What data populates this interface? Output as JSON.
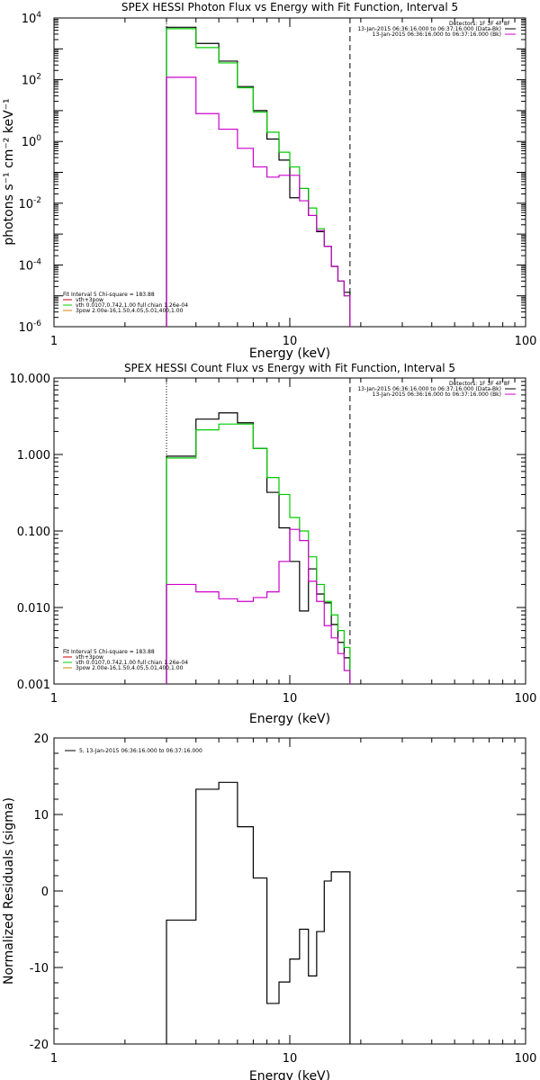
{
  "colors": {
    "black": "#000000",
    "green": "#00cc00",
    "magenta": "#cc00cc",
    "red": "#cc0000",
    "orange": "#cc8800"
  },
  "chart_data": [
    {
      "type": "line",
      "title": "SPEX HESSI Photon Flux vs Energy with Fit Function, Interval 5",
      "xlabel": "Energy (keV)",
      "ylabel": "photons s⁻¹ cm⁻² keV⁻¹",
      "xscale": "log",
      "yscale": "log",
      "xlim": [
        1,
        100
      ],
      "ylim": [
        1e-06,
        10000
      ],
      "x_tick_labels": [
        "1",
        "10",
        "100"
      ],
      "y_tick_labels": [
        {
          "base": "10",
          "exp": "-6"
        },
        {
          "base": "10",
          "exp": "-4"
        },
        {
          "base": "10",
          "exp": "-2"
        },
        {
          "base": "10",
          "exp": "0"
        },
        {
          "base": "10",
          "exp": "2"
        },
        {
          "base": "10",
          "exp": "4"
        }
      ],
      "fit_range_keV": [
        3.0,
        18.0
      ],
      "bin_edges": [
        3.0,
        4.0,
        5.0,
        6.0,
        7.0,
        8.0,
        9.0,
        10.0,
        11.0,
        12.0,
        13.0,
        14.0,
        15.0,
        16.0,
        17.0,
        18.0
      ],
      "series": [
        {
          "color_key": "black",
          "values": [
            5000,
            1500,
            400,
            60,
            10,
            1.2,
            0.25,
            0.015,
            0.03,
            0.004,
            0.0012,
            0.0004,
            9e-05,
            3e-05,
            1.3e-05
          ]
        },
        {
          "color_key": "green",
          "values": [
            4500,
            1100,
            350,
            55,
            9,
            2.0,
            0.45,
            0.15,
            0.03,
            0.007,
            0.0015,
            0.0004,
            9e-05,
            3e-05,
            1e-05
          ]
        },
        {
          "color_key": "magenta",
          "values": [
            120,
            8,
            2.5,
            0.6,
            0.15,
            0.07,
            0.08,
            0.08,
            0.012,
            0.004,
            0.0013,
            0.0004,
            9e-05,
            3e-05,
            1e-05
          ]
        }
      ],
      "header_legend": {
        "detectors": "Detectors: 1F 3F 4F 8F",
        "lines": [
          {
            "text": "13-Jan-2015 06:36:16.000 to 06:37:16.000 (Data-Bk)",
            "color_key": "black"
          },
          {
            "text": "13-Jan-2015 06:36:16.000 to 06:37:16.000 (Bk)",
            "color_key": "magenta"
          }
        ]
      },
      "fit_legend": {
        "header": "Fit Interval 5   Chi-square = 183.88",
        "lines": [
          {
            "text": "vth+3pow",
            "color_key": "red"
          },
          {
            "text": "vth 0.0107,0.742,1.00  full chian 1.26e-04",
            "color_key": "green"
          },
          {
            "text": "3pow 2.00e-16,1.50,4.05,5.01,400,1.00",
            "color_key": "orange"
          }
        ]
      }
    },
    {
      "type": "line",
      "title": "SPEX HESSI Count Flux vs Energy with Fit Function, Interval 5",
      "xlabel": "Energy (keV)",
      "ylabel": "",
      "xscale": "log",
      "yscale": "log",
      "xlim": [
        1,
        100
      ],
      "ylim": [
        0.001,
        10
      ],
      "x_tick_labels": [
        "1",
        "10",
        "100"
      ],
      "y_tick_labels": [
        "0.001",
        "0.010",
        "0.100",
        "1.000",
        "10.000"
      ],
      "fit_range_keV": [
        3.0,
        18.0
      ],
      "bin_edges": [
        3.0,
        4.0,
        5.0,
        6.0,
        7.0,
        8.0,
        9.0,
        10.0,
        11.0,
        12.0,
        13.0,
        14.0,
        15.0,
        16.0,
        17.0,
        18.0
      ],
      "series": [
        {
          "color_key": "black",
          "values": [
            0.95,
            2.9,
            3.5,
            2.6,
            1.2,
            0.32,
            0.11,
            0.04,
            0.009,
            0.032,
            0.015,
            0.0115,
            0.006,
            0.0035,
            0.0022
          ]
        },
        {
          "color_key": "green",
          "values": [
            0.9,
            2.1,
            2.5,
            2.5,
            1.2,
            0.5,
            0.3,
            0.15,
            0.1,
            0.046,
            0.02,
            0.012,
            0.008,
            0.005,
            0.003
          ]
        },
        {
          "color_key": "magenta",
          "values": [
            0.02,
            0.016,
            0.013,
            0.012,
            0.0135,
            0.016,
            0.04,
            0.105,
            0.075,
            0.022,
            0.012,
            0.0058,
            0.004,
            0.0025,
            0.0015
          ]
        }
      ],
      "header_legend": {
        "detectors": "Detectors: 1F 3F 4F 8F",
        "lines": [
          {
            "text": "13-Jan-2015 06:36:16.000 to 06:37:16.000 (Data-Bk)",
            "color_key": "black"
          },
          {
            "text": "13-Jan-2015 06:36:16.000 to 06:37:16.000 (Bk)",
            "color_key": "magenta"
          }
        ]
      },
      "fit_legend": {
        "header": "Fit Interval 5   Chi-square = 183.88",
        "lines": [
          {
            "text": "vth+3pow",
            "color_key": "red"
          },
          {
            "text": "vth 0.0107,0.742,1.00  full chian 1.26e-04",
            "color_key": "green"
          },
          {
            "text": "3pow 2.00e-16,1.50,4.05,5.01,400,1.00",
            "color_key": "orange"
          }
        ]
      }
    },
    {
      "type": "line",
      "title": "",
      "xlabel": "Energy (keV)",
      "ylabel": "Normalized Residuals (sigma)",
      "xscale": "log",
      "yscale": "linear",
      "xlim": [
        1,
        100
      ],
      "ylim": [
        -20,
        20
      ],
      "x_tick_labels": [
        "1",
        "10",
        "100"
      ],
      "y_tick_labels": [
        "-20",
        "-10",
        "0",
        "10",
        "20"
      ],
      "bin_edges": [
        3.0,
        4.0,
        5.0,
        6.0,
        7.0,
        8.0,
        9.0,
        10.0,
        11.0,
        12.0,
        13.0,
        14.0,
        15.0,
        16.0,
        17.0,
        18.0
      ],
      "series": [
        {
          "color_key": "black",
          "values": [
            -3.8,
            13.3,
            14.2,
            8.4,
            1.7,
            -14.7,
            -11.9,
            -8.9,
            -5.0,
            -11.1,
            -5.3,
            1.3,
            2.5,
            2.5,
            2.5
          ]
        }
      ],
      "legend": {
        "text": "5, 13-Jan-2015 06:36:16.000 to 06:37:16.000",
        "color_key": "black"
      }
    }
  ]
}
